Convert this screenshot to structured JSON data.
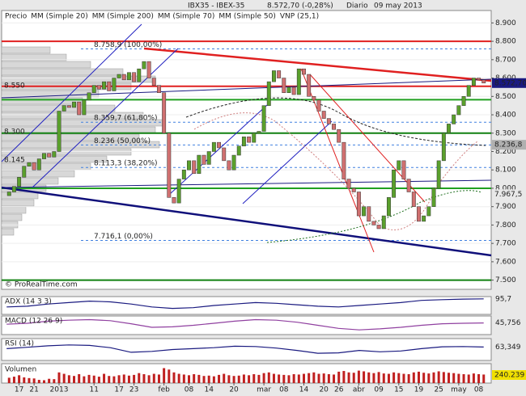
{
  "chart_data": {
    "type": "candlestick",
    "title": "IBX35 - IBEX-35",
    "subtitle": "8.572,70 (-0,28%)",
    "period": "Diario",
    "date": "09 may 2013",
    "watermark": "© ProRealTime.com",
    "legend": [
      {
        "name": "Precio",
        "color": "#666666"
      },
      {
        "name": "MM (Simple 20)",
        "color": "#d04848"
      },
      {
        "name": "MM (Simple 200)",
        "color": "#1a1a80"
      },
      {
        "name": "MM (Simple 70)",
        "color": "#225522"
      },
      {
        "name": "MM (Simple 50)",
        "color": "#b0b0b0"
      },
      {
        "name": "VNP (25,1)",
        "color": "#b8b8b8"
      }
    ],
    "up_color": "#5aa02c",
    "down_color": "#d07070",
    "open": [
      7960,
      7980,
      8010,
      8060,
      8120,
      8140,
      8100,
      8160,
      8190,
      8170,
      8200,
      8420,
      8450,
      8440,
      8470,
      8400,
      8480,
      8520,
      8560,
      8540,
      8580,
      8530,
      8600,
      8620,
      8590,
      8630,
      8580,
      8650,
      8690,
      8600,
      8560,
      8520,
      8300,
      7950,
      7920,
      8050,
      8100,
      8150,
      8080,
      8180,
      8130,
      8200,
      8250,
      8220,
      8150,
      8100,
      8180,
      8230,
      8280,
      8250,
      8300,
      8310,
      8450,
      8580,
      8640,
      8600,
      8520,
      8550,
      8510,
      8650,
      8620,
      8500,
      8480,
      8420,
      8380,
      8350,
      8320,
      8250,
      8050,
      8000,
      7980,
      7850,
      7900,
      7820,
      7800,
      7780,
      7850,
      7950,
      8100,
      8150,
      8050,
      7980,
      7900,
      7820,
      7850,
      7900,
      8000,
      8150,
      8300,
      8350,
      8400,
      8450,
      8500,
      8560,
      8600,
      8590
    ],
    "close": [
      7980,
      8010,
      8060,
      8120,
      8140,
      8100,
      8160,
      8190,
      8170,
      8200,
      8420,
      8450,
      8440,
      8470,
      8400,
      8480,
      8520,
      8560,
      8540,
      8580,
      8530,
      8600,
      8620,
      8590,
      8630,
      8580,
      8650,
      8690,
      8600,
      8560,
      8520,
      8300,
      7950,
      7920,
      8050,
      8100,
      8150,
      8080,
      8180,
      8130,
      8200,
      8250,
      8220,
      8150,
      8100,
      8180,
      8230,
      8280,
      8250,
      8300,
      8310,
      8450,
      8580,
      8640,
      8600,
      8520,
      8550,
      8510,
      8650,
      8620,
      8500,
      8480,
      8420,
      8380,
      8350,
      8320,
      8250,
      8050,
      8000,
      7980,
      7850,
      7900,
      7820,
      7800,
      7780,
      7850,
      7950,
      8100,
      8150,
      8050,
      7980,
      7900,
      7820,
      7850,
      7900,
      8000,
      8150,
      8300,
      8350,
      8400,
      8450,
      8500,
      8560,
      8600,
      8590,
      8572.7
    ],
    "xlim": [
      -1.5,
      96.5
    ],
    "xticks": [
      {
        "value": 2,
        "label": "17"
      },
      {
        "value": 5,
        "label": "21"
      },
      {
        "value": 10,
        "label": "2013"
      },
      {
        "value": 17,
        "label": "11"
      },
      {
        "value": 22,
        "label": "17"
      },
      {
        "value": 25,
        "label": "23"
      },
      {
        "value": 31,
        "label": "feb"
      },
      {
        "value": 36,
        "label": "08"
      },
      {
        "value": 40,
        "label": "14"
      },
      {
        "value": 45,
        "label": "20"
      },
      {
        "value": 51,
        "label": "mar"
      },
      {
        "value": 55,
        "label": "08"
      },
      {
        "value": 59,
        "label": "14"
      },
      {
        "value": 63,
        "label": "20"
      },
      {
        "value": 66,
        "label": "26"
      },
      {
        "value": 70,
        "label": "abr"
      },
      {
        "value": 74,
        "label": "09"
      },
      {
        "value": 78,
        "label": "15"
      },
      {
        "value": 82,
        "label": "19"
      },
      {
        "value": 86,
        "label": "25"
      },
      {
        "value": 90,
        "label": "may"
      },
      {
        "value": 94,
        "label": "08"
      }
    ],
    "ylim": [
      7450,
      8950
    ],
    "yticks": [
      {
        "value": 7500,
        "label": "7.500"
      },
      {
        "value": 7600,
        "label": "7.600"
      },
      {
        "value": 7700,
        "label": "7.700"
      },
      {
        "value": 7800,
        "label": "7.800"
      },
      {
        "value": 7900,
        "label": "7.900"
      },
      {
        "value": 8000,
        "label": "8.000"
      },
      {
        "value": 8100,
        "label": "8.100"
      },
      {
        "value": 8200,
        "label": "8.200"
      },
      {
        "value": 8300,
        "label": "8.300"
      },
      {
        "value": 8400,
        "label": "8.400"
      },
      {
        "value": 8500,
        "label": "8.500"
      },
      {
        "value": 8600,
        "label": "8.600"
      },
      {
        "value": 8700,
        "label": "8.700"
      },
      {
        "value": 8800,
        "label": "8.800"
      },
      {
        "value": 8900,
        "label": "8.900"
      }
    ],
    "levels": [
      {
        "value": 8800,
        "color": "#e02020"
      },
      {
        "value": 8555,
        "color": "#e02020"
      },
      {
        "value": 8482,
        "color": "#20a020"
      },
      {
        "value": 8300,
        "color": "#108010"
      },
      {
        "value": 8000,
        "color": "#20a020"
      },
      {
        "value": 7500,
        "color": "#108010"
      }
    ],
    "fibonacci": [
      {
        "value": 8758.9,
        "label": "8.758,9 (100,00%)"
      },
      {
        "value": 8359.7,
        "label": "8.359,7 (61,80%)"
      },
      {
        "value": 8236,
        "label": "8.236 (50,00%)"
      },
      {
        "value": 8113.3,
        "label": "8.113,3 (38,20%)"
      },
      {
        "value": 7716.1,
        "label": "7.716,1 (0,00%)"
      }
    ],
    "profile_labels": [
      {
        "value": 8550,
        "label": "8.550"
      },
      {
        "value": 8300,
        "label": "8.300"
      },
      {
        "value": 8145,
        "label": "8.145"
      }
    ],
    "right_labels": [
      {
        "value": 8572.7,
        "label": "8.572,70",
        "color": "#1a1a80"
      },
      {
        "value": 8236.8,
        "label": "8.236,8",
        "color": "#b0b0b0"
      },
      {
        "value": 7967.5,
        "label": "7.967,5",
        "color": "#e8e8e8"
      }
    ],
    "indicators": [
      {
        "name": "ADX (14 3 3)",
        "color": "#1a1a80",
        "ylim": [
          0,
          100
        ],
        "values": [
          40,
          45,
          60,
          70,
          80,
          75,
          60,
          40,
          30,
          35,
          50,
          60,
          70,
          65,
          55,
          45,
          40,
          50,
          60,
          70,
          85,
          90,
          94,
          95.7
        ],
        "value_label": "95,7"
      },
      {
        "name": "MACD (12 26 9)",
        "color": "#9040a0",
        "ylim": [
          -150,
          150
        ],
        "values": [
          20,
          40,
          80,
          100,
          110,
          90,
          30,
          -40,
          -30,
          0,
          40,
          80,
          110,
          100,
          60,
          0,
          -60,
          -90,
          -70,
          -40,
          0,
          30,
          40,
          45.756
        ],
        "value_label": "45,756"
      },
      {
        "name": "RSI (14)",
        "color": "#1a1a80",
        "ylim": [
          0,
          100
        ],
        "values": [
          55,
          62,
          70,
          75,
          72,
          60,
          35,
          40,
          50,
          55,
          60,
          68,
          66,
          58,
          45,
          30,
          32,
          45,
          38,
          42,
          55,
          65,
          66,
          63.349
        ],
        "value_label": "63,349"
      }
    ],
    "volume": {
      "name": "Volumen",
      "color": "#c02020",
      "ylim": [
        0,
        500000
      ],
      "value_label": "240.239",
      "values": [
        150000,
        180000,
        220000,
        160000,
        140000,
        130000,
        90000,
        80000,
        120000,
        110000,
        300000,
        260000,
        220000,
        200000,
        250000,
        190000,
        230000,
        210000,
        180000,
        260000,
        200000,
        190000,
        220000,
        240000,
        210000,
        230000,
        280000,
        250000,
        220000,
        260000,
        240000,
        420000,
        380000,
        300000,
        260000,
        240000,
        220000,
        250000,
        230000,
        200000,
        210000,
        190000,
        230000,
        260000,
        220000,
        200000,
        210000,
        240000,
        220000,
        250000,
        230000,
        280000,
        300000,
        260000,
        240000,
        230000,
        220000,
        250000,
        240000,
        260000,
        280000,
        300000,
        260000,
        270000,
        250000,
        240000,
        320000,
        340000,
        300000,
        290000,
        350000,
        330000,
        300000,
        280000,
        310000,
        270000,
        260000,
        300000,
        280000,
        260000,
        250000,
        300000,
        320000,
        290000,
        270000,
        300000,
        330000,
        310000,
        290000,
        280000,
        260000,
        250000,
        240000,
        270000,
        250000,
        240239
      ]
    }
  }
}
